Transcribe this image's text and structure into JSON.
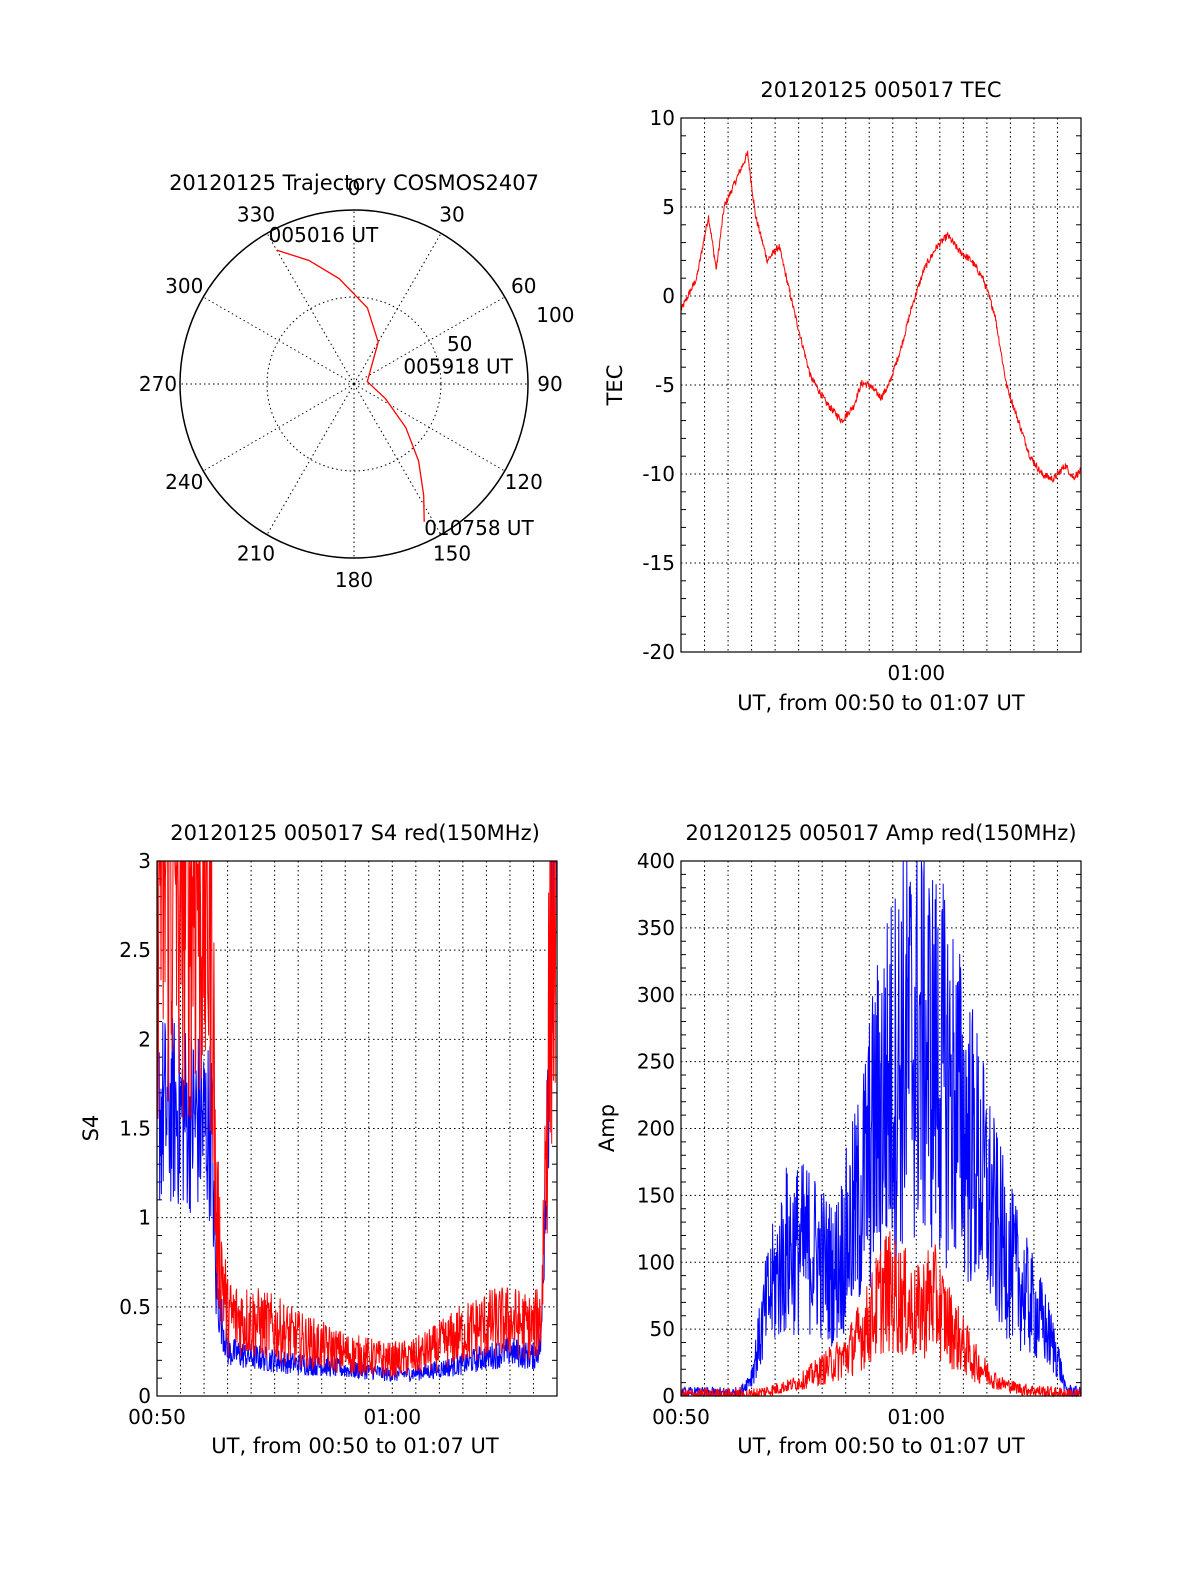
{
  "chart_data": [
    {
      "type": "polar",
      "title": "20120125 Trajectory COSMOS2407",
      "angle_labels": [
        "0",
        "30",
        "60",
        "90",
        "120",
        "150",
        "180",
        "210",
        "240",
        "270",
        "300",
        "330"
      ],
      "radius_labels": [
        "50",
        "100"
      ],
      "rlim": [
        0,
        100
      ],
      "grid": true,
      "series": [
        {
          "color": "#ff0000",
          "points": [
            {
              "az": 330,
              "el": 10
            },
            {
              "az": 340,
              "el": 22
            },
            {
              "az": 352,
              "el": 35
            },
            {
              "az": 10,
              "el": 50
            },
            {
              "az": 30,
              "el": 65
            },
            {
              "az": 80,
              "el": 83
            },
            {
              "az": 115,
              "el": 72
            },
            {
              "az": 130,
              "el": 55
            },
            {
              "az": 140,
              "el": 38
            },
            {
              "az": 148,
              "el": 22
            },
            {
              "az": 153,
              "el": 10
            }
          ]
        }
      ],
      "annotations": [
        {
          "text": "005016 UT",
          "az": 330,
          "el": 10
        },
        {
          "text": "005918 UT",
          "az": 80,
          "el": 83
        },
        {
          "text": "010758 UT",
          "az": 153,
          "el": 10
        }
      ]
    },
    {
      "type": "line",
      "title": "20120125 005017 TEC",
      "xlabel": "UT, from 00:50 to 01:07 UT",
      "ylabel": "TEC",
      "xlim": [
        "00:50",
        "01:07"
      ],
      "ylim": [
        -20,
        10
      ],
      "yticks": [
        10,
        5,
        0,
        -5,
        -10,
        -15,
        -20
      ],
      "xtick_labels": [
        {
          "x": "01:00",
          "label": "01:00"
        }
      ],
      "grid": true,
      "series": [
        {
          "color": "#ff0000",
          "x": [
            "00:50:00",
            "00:50:40",
            "00:51:10",
            "00:51:30",
            "00:51:50",
            "00:52:20",
            "00:52:50",
            "00:53:10",
            "00:53:40",
            "00:54:10",
            "00:54:50",
            "00:55:30",
            "00:56:10",
            "00:56:50",
            "00:57:20",
            "00:57:40",
            "00:58:00",
            "00:58:30",
            "00:58:50",
            "00:59:20",
            "00:59:50",
            "01:00:20",
            "01:00:50",
            "01:01:20",
            "01:01:50",
            "01:02:20",
            "01:02:50",
            "01:03:20",
            "01:03:50",
            "01:04:20",
            "01:04:50",
            "01:05:20",
            "01:05:50",
            "01:06:20",
            "01:06:40",
            "01:07:00"
          ],
          "y": [
            -0.8,
            1.0,
            4.5,
            1.5,
            5.0,
            6.5,
            8.0,
            4.5,
            2.0,
            2.8,
            -1.0,
            -4.5,
            -6.0,
            -7.0,
            -6.2,
            -4.9,
            -5.0,
            -5.7,
            -5.0,
            -3.0,
            -0.5,
            1.5,
            2.7,
            3.4,
            2.5,
            2.0,
            1.0,
            -1.0,
            -5.0,
            -7.0,
            -9.0,
            -10.0,
            -10.3,
            -9.5,
            -10.2,
            -9.8
          ],
          "noise": 0.4
        }
      ]
    },
    {
      "type": "line",
      "title": "20120125 005017 S4 red(150MHz)",
      "xlabel": "UT, from 00:50 to 01:07 UT",
      "ylabel": "S4",
      "xlim": [
        "00:50",
        "01:07"
      ],
      "ylim": [
        0,
        3
      ],
      "yticks": [
        0,
        0.5,
        1,
        1.5,
        2,
        2.5,
        3
      ],
      "xtick_labels": [
        {
          "x": "00:50",
          "label": "00:50"
        },
        {
          "x": "01:00",
          "label": "01:00"
        }
      ],
      "grid": true,
      "series": [
        {
          "color": "#0000ff",
          "x": [
            "00:50:00",
            "00:50:50",
            "00:51:40",
            "00:52:20",
            "00:52:30",
            "00:53:00",
            "00:54:00",
            "00:55:00",
            "00:56:00",
            "00:57:00",
            "00:58:00",
            "00:59:00",
            "01:00:00",
            "01:01:00",
            "01:02:00",
            "01:03:00",
            "01:04:00",
            "01:05:00",
            "01:06:00",
            "01:06:20",
            "01:06:45",
            "01:07:00"
          ],
          "y": [
            1.6,
            1.6,
            1.55,
            1.5,
            0.6,
            0.25,
            0.22,
            0.2,
            0.18,
            0.17,
            0.15,
            0.14,
            0.12,
            0.13,
            0.15,
            0.18,
            0.22,
            0.25,
            0.22,
            0.3,
            2.5,
            3.0
          ],
          "noise": 0.35
        },
        {
          "color": "#ff0000",
          "x": [
            "00:50:00",
            "00:50:50",
            "00:51:40",
            "00:52:20",
            "00:52:30",
            "00:53:00",
            "00:54:00",
            "00:55:00",
            "00:56:00",
            "00:57:00",
            "00:58:00",
            "00:59:00",
            "01:00:00",
            "01:01:00",
            "01:02:00",
            "01:03:00",
            "01:04:00",
            "01:05:00",
            "01:06:00",
            "01:06:20",
            "01:06:45",
            "01:07:00"
          ],
          "y": [
            3.0,
            3.0,
            3.0,
            2.8,
            1.0,
            0.45,
            0.42,
            0.38,
            0.32,
            0.28,
            0.24,
            0.22,
            0.2,
            0.22,
            0.28,
            0.35,
            0.4,
            0.42,
            0.38,
            0.45,
            2.6,
            3.0
          ],
          "noise": 0.5
        }
      ]
    },
    {
      "type": "line",
      "title": "20120125 005017 Amp red(150MHz)",
      "xlabel": "UT, from 00:50 to 01:07 UT",
      "ylabel": "Amp",
      "xlim": [
        "00:50",
        "01:07"
      ],
      "ylim": [
        0,
        400
      ],
      "yticks": [
        0,
        50,
        100,
        150,
        200,
        250,
        300,
        350,
        400
      ],
      "xtick_labels": [
        {
          "x": "00:50",
          "label": "00:50"
        },
        {
          "x": "01:00",
          "label": "01:00"
        }
      ],
      "grid": true,
      "series": [
        {
          "color": "#0000ff",
          "x": [
            "00:50:00",
            "00:52:30",
            "00:53:00",
            "00:53:40",
            "00:54:30",
            "00:55:30",
            "00:56:30",
            "00:57:30",
            "00:58:30",
            "00:59:30",
            "01:00:00",
            "01:00:30",
            "01:01:30",
            "01:02:30",
            "01:03:30",
            "01:04:30",
            "01:05:30",
            "01:06:00",
            "01:06:20",
            "01:07:00"
          ],
          "y": [
            2,
            2,
            15,
            70,
            110,
            110,
            90,
            140,
            220,
            260,
            270,
            260,
            230,
            180,
            120,
            80,
            50,
            30,
            5,
            2
          ],
          "noise": 0.6
        },
        {
          "color": "#ff0000",
          "x": [
            "00:50:00",
            "00:53:00",
            "00:54:00",
            "00:55:00",
            "00:56:00",
            "00:57:00",
            "00:58:00",
            "00:58:40",
            "00:59:30",
            "01:00:00",
            "01:00:40",
            "01:01:30",
            "01:02:30",
            "01:03:30",
            "01:04:30",
            "01:05:30",
            "01:06:00",
            "01:07:00"
          ],
          "y": [
            1,
            1,
            5,
            10,
            20,
            30,
            55,
            80,
            70,
            60,
            75,
            50,
            25,
            10,
            5,
            3,
            2,
            1
          ],
          "noise": 0.6
        }
      ]
    }
  ]
}
